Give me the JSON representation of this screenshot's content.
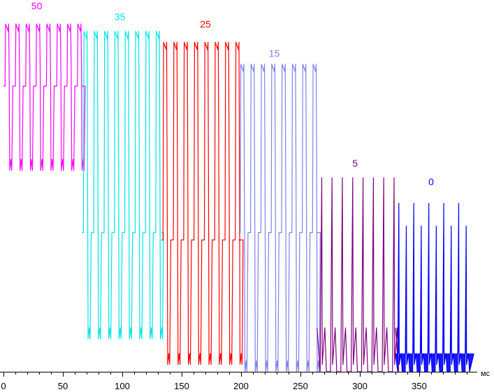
{
  "chart_data": {
    "type": "line",
    "title": "",
    "xlabel": "",
    "ylabel": "",
    "x_unit": "мс",
    "xlim": [
      0,
      400
    ],
    "ylim": [
      0,
      100
    ],
    "x_ticks": [
      0,
      50,
      100,
      150,
      200,
      250,
      300,
      350
    ],
    "x_tick_labels": [
      "0",
      "50",
      "100",
      "150",
      "200",
      "250",
      "300",
      "350"
    ],
    "grid": false,
    "legend": "none",
    "series": [
      {
        "name": "50",
        "color": "#ff00ff",
        "x_start": 0,
        "x_end": 66,
        "period_ms": 8.7,
        "pulses": 8,
        "high": 95,
        "low": 55,
        "mid": 78,
        "label_x": 28,
        "label_y": 99,
        "shape": "square"
      },
      {
        "name": "35",
        "color": "#00e5e5",
        "x_start": 66,
        "x_end": 133,
        "period_ms": 8.7,
        "pulses": 8,
        "high": 93,
        "low": 9,
        "mid": 38,
        "label_x": 98,
        "label_y": 96,
        "shape": "square"
      },
      {
        "name": "25",
        "color": "#ff0000",
        "x_start": 133,
        "x_end": 198,
        "period_ms": 8.7,
        "pulses": 8,
        "high": 90,
        "low": 2,
        "mid": 36,
        "label_x": 170,
        "label_y": 94,
        "shape": "square"
      },
      {
        "name": "15",
        "color": "#8080ee",
        "x_start": 198,
        "x_end": 264,
        "period_ms": 8.7,
        "pulses": 8,
        "high": 84,
        "low": 0,
        "mid": 38,
        "label_x": 228,
        "label_y": 86,
        "shape": "square"
      },
      {
        "name": "5",
        "color": "#800080",
        "x_start": 264,
        "x_end": 330,
        "period_ms": 8.7,
        "pulses": 8,
        "high": 53,
        "low": 0,
        "mid": 12,
        "label_x": 296,
        "label_y": 56,
        "shape": "spike"
      },
      {
        "name": "0",
        "color": "#0000ff",
        "x_start": 330,
        "x_end": 396,
        "period_ms": 6.3,
        "pulses": 10,
        "high": 46,
        "low": 0,
        "mid": 5,
        "label_x": 360,
        "label_y": 51,
        "shape": "spike"
      }
    ]
  }
}
